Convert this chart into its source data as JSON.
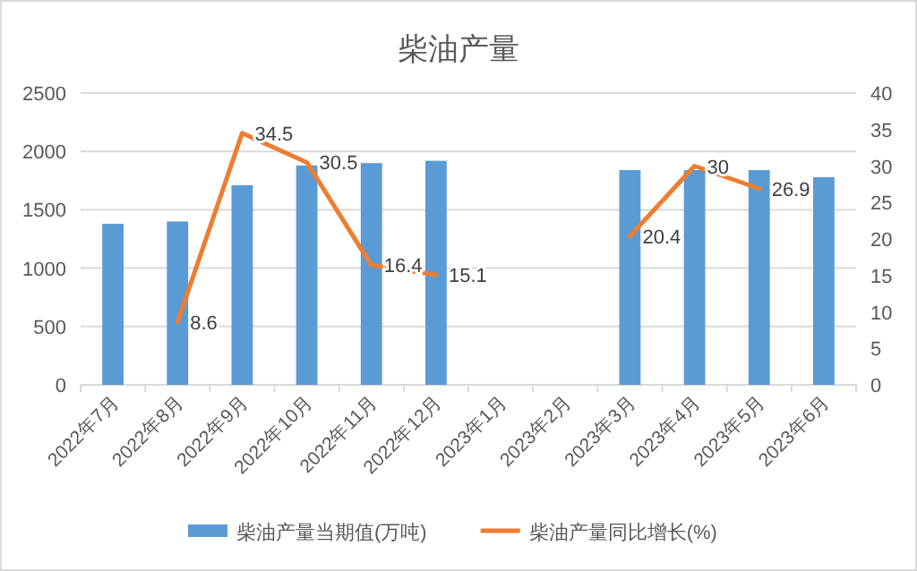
{
  "chart_data": {
    "type": "bar",
    "title": "柴油产量",
    "categories": [
      "2022年7月",
      "2022年8月",
      "2022年9月",
      "2022年10月",
      "2022年11月",
      "2022年12月",
      "2023年1月",
      "2023年2月",
      "2023年3月",
      "2023年4月",
      "2023年5月",
      "2023年6月"
    ],
    "series": [
      {
        "name": "柴油产量当期值(万吨)",
        "color": "#5b9bd5",
        "values": [
          1380,
          1400,
          1710,
          1880,
          1900,
          1920,
          null,
          null,
          1840,
          1840,
          1840,
          1780
        ]
      },
      {
        "name": "柴油产量同比增长(%)",
        "type": "line",
        "axis": "y2",
        "color": "#ed7d31",
        "values": [
          null,
          8.6,
          34.5,
          30.5,
          16.4,
          15.1,
          null,
          null,
          20.4,
          30,
          26.9,
          null
        ],
        "data_labels": true
      }
    ],
    "ylim": [
      0,
      2500
    ],
    "yticks": [
      0,
      500,
      1000,
      1500,
      2000,
      2500
    ],
    "y2lim": [
      0,
      40
    ],
    "y2ticks": [
      0,
      5,
      10,
      15,
      20,
      25,
      30,
      35,
      40
    ],
    "grid": "y",
    "legend": "bottom"
  }
}
